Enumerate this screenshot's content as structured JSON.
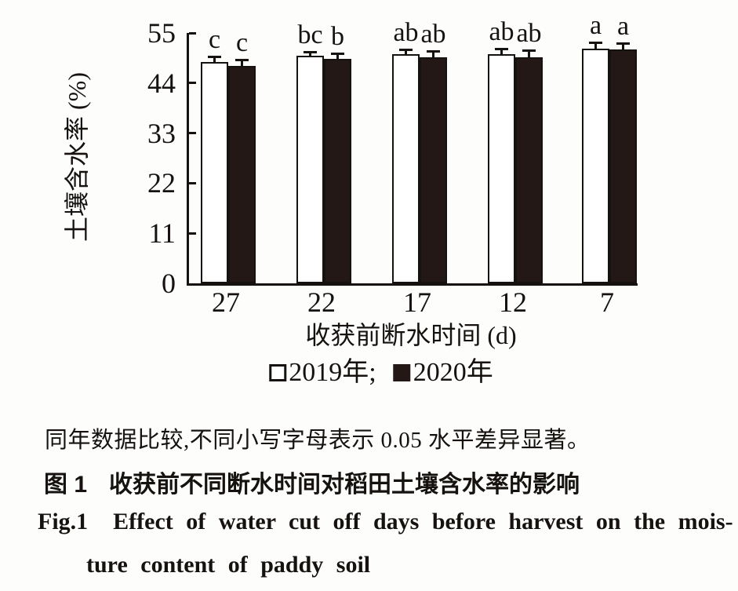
{
  "chart_data": {
    "type": "bar",
    "title": "",
    "xlabel": "收获前断水时间 (d)",
    "ylabel": "土壤含水率 (%)",
    "ylim": [
      0,
      55
    ],
    "y_ticks": [
      0,
      11,
      22,
      33,
      44,
      55
    ],
    "grid": false,
    "legend_position": "bottom",
    "categories": [
      "27",
      "22",
      "17",
      "12",
      "7"
    ],
    "series": [
      {
        "name": "2019年",
        "fill": "#ffffff",
        "values": [
          48.6,
          50.0,
          50.4,
          50.4,
          51.6
        ],
        "errors": [
          1.2,
          0.9,
          1.0,
          1.1,
          1.4
        ],
        "letters": [
          "c",
          "bc",
          "ab",
          "ab",
          "a"
        ]
      },
      {
        "name": "2020年",
        "fill": "#231815",
        "values": [
          47.8,
          49.3,
          49.7,
          49.6,
          51.3
        ],
        "errors": [
          1.3,
          1.2,
          1.4,
          1.6,
          1.5
        ],
        "letters": [
          "c",
          "b",
          "ab",
          "ab",
          "a"
        ]
      }
    ],
    "legend": [
      {
        "label": "2019年;",
        "swatch": "open"
      },
      {
        "label": "2020年",
        "swatch": "filled"
      }
    ]
  },
  "caption": {
    "note": "同年数据比较,不同小写字母表示 0.05 水平差异显著。",
    "zh_label": "图 1",
    "zh_text": "收获前不同断水时间对稻田土壤含水率的影响",
    "en_label": "Fig.1",
    "en_text_line1": "Effect of water cut off days before harvest on the mois-",
    "en_text_line2": "ture content of paddy soil"
  },
  "colors": {
    "bar_2020_fill": "#231815",
    "axis": "#151210",
    "background": "#fdfdfc"
  }
}
